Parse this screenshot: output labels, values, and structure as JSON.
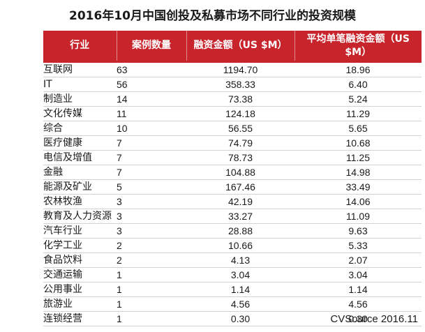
{
  "chart_data": {
    "type": "table",
    "title": "2016年10月中国创投及私募市场不同行业的投资规模",
    "columns": [
      "行业",
      "案例数量",
      "融资金额（US $M）",
      "平均单笔融资金额（US $M）"
    ],
    "rows": [
      [
        "互联网",
        "63",
        "1194.70",
        "18.96"
      ],
      [
        "IT",
        "56",
        "358.33",
        "6.40"
      ],
      [
        "制造业",
        "14",
        "73.38",
        "5.24"
      ],
      [
        "文化传媒",
        "11",
        "124.18",
        "11.29"
      ],
      [
        "综合",
        "10",
        "56.55",
        "5.65"
      ],
      [
        "医疗健康",
        "7",
        "74.79",
        "10.68"
      ],
      [
        "电信及增值",
        "7",
        "78.73",
        "11.25"
      ],
      [
        "金融",
        "7",
        "104.88",
        "14.98"
      ],
      [
        "能源及矿业",
        "5",
        "167.46",
        "33.49"
      ],
      [
        "农林牧渔",
        "3",
        "42.19",
        "14.06"
      ],
      [
        "教育及人力资源",
        "3",
        "33.27",
        "11.09"
      ],
      [
        "汽车行业",
        "3",
        "28.88",
        "9.63"
      ],
      [
        "化学工业",
        "2",
        "10.66",
        "5.33"
      ],
      [
        "食品饮料",
        "2",
        "4.13",
        "2.07"
      ],
      [
        "交通运输",
        "1",
        "3.04",
        "3.04"
      ],
      [
        "公用事业",
        "1",
        "1.14",
        "1.14"
      ],
      [
        "旅游业",
        "1",
        "4.56",
        "4.56"
      ],
      [
        "连锁经营",
        "1",
        "0.30",
        "0.30"
      ]
    ],
    "source": "CVSource 2016.11"
  },
  "colors": {
    "header_bg": "#c8242b",
    "header_text": "#ffffff",
    "rule": "#d2d2d2"
  }
}
